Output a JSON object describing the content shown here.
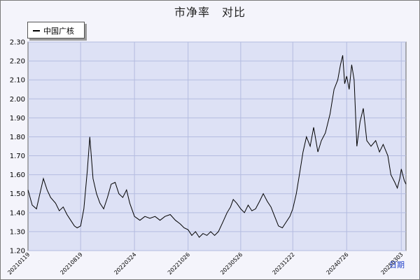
{
  "chart_data": {
    "type": "line",
    "title": "市净率　对比",
    "xlabel": "日期",
    "ylabel": "",
    "ylim": [
      1.2,
      2.3
    ],
    "yticks": [
      "1.20",
      "1.30",
      "1.40",
      "1.50",
      "1.60",
      "1.70",
      "1.80",
      "1.90",
      "2.00",
      "2.10",
      "2.20",
      "2.30"
    ],
    "xticks": [
      "20210119",
      "20210819",
      "20220324",
      "20221026",
      "20230526",
      "20231222",
      "20240726",
      "20250303"
    ],
    "grid": true,
    "legend_position": "top-left",
    "line_color": "#000000",
    "series": [
      {
        "name": "中国广核",
        "points": [
          [
            "20210119",
            1.52
          ],
          [
            "20210205",
            1.44
          ],
          [
            "20210222",
            1.42
          ],
          [
            "20210308",
            1.5
          ],
          [
            "20210322",
            1.58
          ],
          [
            "20210406",
            1.52
          ],
          [
            "20210420",
            1.48
          ],
          [
            "20210510",
            1.45
          ],
          [
            "20210525",
            1.41
          ],
          [
            "20210610",
            1.43
          ],
          [
            "20210625",
            1.39
          ],
          [
            "20210710",
            1.36
          ],
          [
            "20210725",
            1.33
          ],
          [
            "20210805",
            1.32
          ],
          [
            "20210819",
            1.33
          ],
          [
            "20210901",
            1.42
          ],
          [
            "20210915",
            1.62
          ],
          [
            "20210925",
            1.8
          ],
          [
            "20211008",
            1.58
          ],
          [
            "20211022",
            1.5
          ],
          [
            "20211105",
            1.45
          ],
          [
            "20211120",
            1.42
          ],
          [
            "20211205",
            1.48
          ],
          [
            "20211220",
            1.55
          ],
          [
            "20220105",
            1.56
          ],
          [
            "20220120",
            1.5
          ],
          [
            "20220205",
            1.48
          ],
          [
            "20220220",
            1.52
          ],
          [
            "20220305",
            1.45
          ],
          [
            "20220324",
            1.38
          ],
          [
            "20220415",
            1.36
          ],
          [
            "20220505",
            1.38
          ],
          [
            "20220525",
            1.37
          ],
          [
            "20220615",
            1.38
          ],
          [
            "20220705",
            1.36
          ],
          [
            "20220725",
            1.38
          ],
          [
            "20220815",
            1.39
          ],
          [
            "20220905",
            1.36
          ],
          [
            "20220925",
            1.34
          ],
          [
            "20221010",
            1.32
          ],
          [
            "20221026",
            1.31
          ],
          [
            "20221110",
            1.28
          ],
          [
            "20221125",
            1.3
          ],
          [
            "20221210",
            1.27
          ],
          [
            "20221225",
            1.29
          ],
          [
            "20230110",
            1.28
          ],
          [
            "20230125",
            1.3
          ],
          [
            "20230210",
            1.28
          ],
          [
            "20230225",
            1.3
          ],
          [
            "20230315",
            1.35
          ],
          [
            "20230401",
            1.4
          ],
          [
            "20230415",
            1.43
          ],
          [
            "20230426",
            1.47
          ],
          [
            "20230510",
            1.45
          ],
          [
            "20230526",
            1.42
          ],
          [
            "20230610",
            1.4
          ],
          [
            "20230625",
            1.44
          ],
          [
            "20230710",
            1.41
          ],
          [
            "20230725",
            1.42
          ],
          [
            "20230810",
            1.46
          ],
          [
            "20230825",
            1.5
          ],
          [
            "20230910",
            1.46
          ],
          [
            "20230925",
            1.43
          ],
          [
            "20231010",
            1.38
          ],
          [
            "20231025",
            1.33
          ],
          [
            "20231110",
            1.32
          ],
          [
            "20231125",
            1.35
          ],
          [
            "20231210",
            1.38
          ],
          [
            "20231222",
            1.42
          ],
          [
            "20240105",
            1.5
          ],
          [
            "20240120",
            1.62
          ],
          [
            "20240201",
            1.72
          ],
          [
            "20240215",
            1.8
          ],
          [
            "20240301",
            1.75
          ],
          [
            "20240315",
            1.85
          ],
          [
            "20240401",
            1.72
          ],
          [
            "20240415",
            1.78
          ],
          [
            "20240501",
            1.82
          ],
          [
            "20240520",
            1.92
          ],
          [
            "20240605",
            2.05
          ],
          [
            "20240620",
            2.1
          ],
          [
            "20240701",
            2.18
          ],
          [
            "20240710",
            2.23
          ],
          [
            "20240718",
            2.08
          ],
          [
            "20240726",
            2.12
          ],
          [
            "20240805",
            2.05
          ],
          [
            "20240815",
            2.18
          ],
          [
            "20240825",
            2.1
          ],
          [
            "20240905",
            1.75
          ],
          [
            "20240918",
            1.88
          ],
          [
            "20241001",
            1.95
          ],
          [
            "20241015",
            1.78
          ],
          [
            "20241101",
            1.75
          ],
          [
            "20241120",
            1.78
          ],
          [
            "20241205",
            1.72
          ],
          [
            "20241220",
            1.76
          ],
          [
            "20250108",
            1.7
          ],
          [
            "20250120",
            1.6
          ],
          [
            "20250205",
            1.56
          ],
          [
            "20250215",
            1.53
          ],
          [
            "20250225",
            1.58
          ],
          [
            "20250303",
            1.63
          ],
          [
            "20250315",
            1.57
          ],
          [
            "20250322",
            1.55
          ]
        ]
      }
    ]
  }
}
